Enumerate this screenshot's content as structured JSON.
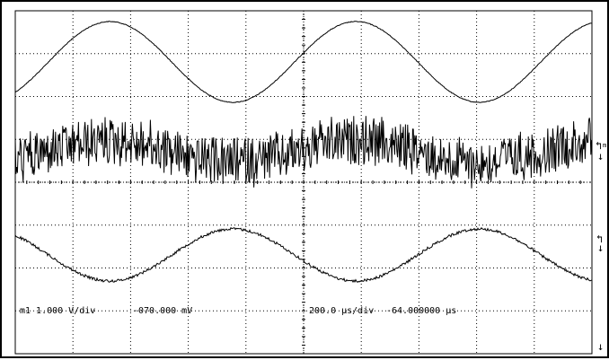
{
  "readouts": {
    "channel_scale": "m1 1.000 V/div",
    "channel_offset": "-070.000 mV",
    "timebase_scale": "200.0 µs/div",
    "timebase_delay": "-64.000000 µs"
  },
  "markers": {
    "m1_label": "m1"
  },
  "display": {
    "horizontal_divisions": 10,
    "vertical_divisions": 8,
    "grid_style": "dotted",
    "background_color": "#ffffff",
    "trace_color": "#000000",
    "grid_color": "#000000"
  },
  "icons": {
    "m1_marker": "bracket-arrow-icon",
    "ref_marker": "down-arrow-icon",
    "bottom_marker": "down-arrow-icon"
  }
}
